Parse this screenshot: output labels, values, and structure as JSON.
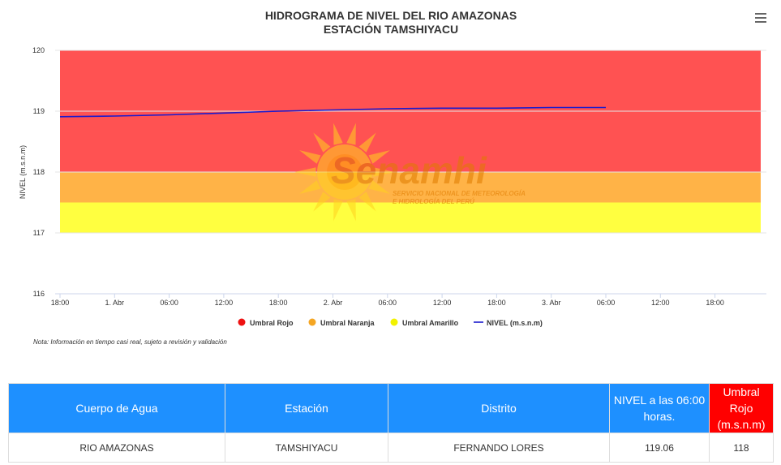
{
  "chart_data": {
    "type": "line",
    "title": "HIDROGRAMA DE NIVEL DEL RIO AMAZONAS",
    "subtitle": "ESTACIÓN TAMSHIYACU",
    "ylabel": "NIVEL (m.s.n.m)",
    "xlabel": "",
    "ylim": [
      116,
      120
    ],
    "yticks": [
      "116",
      "117",
      "118",
      "119",
      "120"
    ],
    "xticks": [
      "18:00",
      "1. Abr",
      "06:00",
      "12:00",
      "18:00",
      "2. Abr",
      "06:00",
      "12:00",
      "18:00",
      "3. Abr",
      "06:00",
      "12:00",
      "18:00"
    ],
    "grid": true,
    "legend_position": "bottom",
    "bands": [
      {
        "name": "Umbral Rojo",
        "from": 118,
        "to": 120,
        "color": "#ff5252"
      },
      {
        "name": "Umbral Naranja",
        "from": 117.5,
        "to": 118,
        "color": "#ffb347"
      },
      {
        "name": "Umbral Amarillo",
        "from": 117,
        "to": 117.5,
        "color": "#ffff40"
      }
    ],
    "series": [
      {
        "name": "NIVEL (m.s.n.m)",
        "color": "#1a1acd",
        "x_hours_from_first_tick": [
          0,
          6,
          12,
          18,
          24,
          30,
          36,
          42,
          48,
          54,
          60
        ],
        "values": [
          118.91,
          118.92,
          118.94,
          118.97,
          119.0,
          119.02,
          119.04,
          119.05,
          119.05,
          119.06,
          119.06
        ]
      }
    ],
    "legend": [
      {
        "label": "Umbral Rojo",
        "color": "#ee1111",
        "marker": "circle"
      },
      {
        "label": "Umbral Naranja",
        "color": "#f5a623",
        "marker": "circle"
      },
      {
        "label": "Umbral Amarillo",
        "color": "#f2f200",
        "marker": "circle"
      },
      {
        "label": "NIVEL (m.s.n.m)",
        "color": "#1a1acd",
        "marker": "line"
      }
    ],
    "note": "Nota: Información en tiempo casi real, sujeto a revisión y validación"
  },
  "watermark": {
    "brand": "Senamhi",
    "line1": "SERVICIO NACIONAL DE METEOROLOGÍA",
    "line2": "E HIDROLOGÍA DEL PERÚ"
  },
  "menu": {
    "icon": "hamburger-icon"
  },
  "table": {
    "headers": [
      "Cuerpo de Agua",
      "Estación",
      "Distrito",
      "NIVEL a las 06:00 horas.",
      "Umbral Rojo (m.s.n.m)"
    ],
    "row": [
      "RIO AMAZONAS",
      "TAMSHIYACU",
      "FERNANDO LORES",
      "119.06",
      "118"
    ],
    "colors": {
      "header_blue": "#1e90ff",
      "header_red": "#ff0000"
    }
  }
}
